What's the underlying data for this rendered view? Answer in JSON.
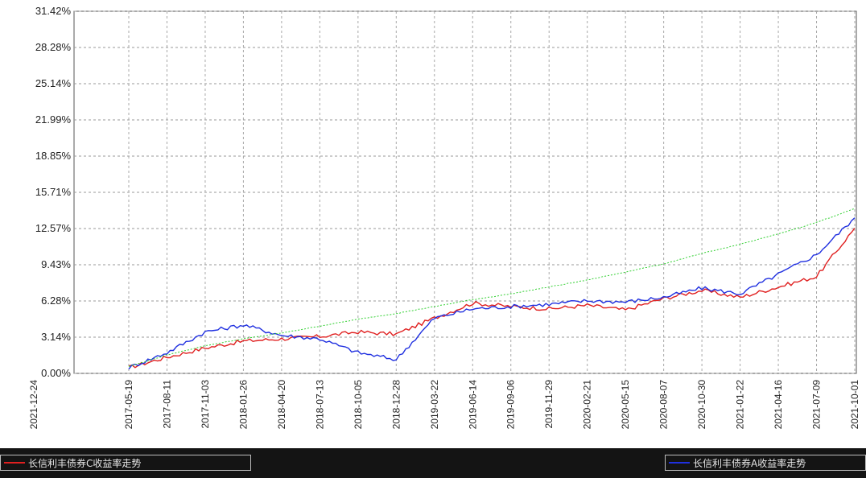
{
  "chart_data": {
    "type": "line",
    "title": "",
    "xlabel": "",
    "ylabel": "",
    "y_tick_labels": [
      "31.42%",
      "28.28%",
      "25.14%",
      "21.99%",
      "18.85%",
      "15.71%",
      "12.57%",
      "9.43%",
      "6.28%",
      "3.14%",
      "0.00%"
    ],
    "y_tick_values": [
      31.42,
      28.28,
      25.14,
      21.99,
      18.85,
      15.71,
      12.57,
      9.43,
      6.28,
      3.14,
      0.0
    ],
    "ylim": [
      0.0,
      31.42
    ],
    "x_tick_labels": [
      "2021-12-24",
      "2017-05-19",
      "2017-08-11",
      "2017-11-03",
      "2018-01-26",
      "2018-04-20",
      "2018-07-13",
      "2018-10-05",
      "2018-12-28",
      "2019-03-22",
      "2019-06-14",
      "2019-09-06",
      "2019-11-29",
      "2020-02-21",
      "2020-05-15",
      "2020-08-07",
      "2020-10-30",
      "2021-01-22",
      "2021-04-16",
      "2021-07-09",
      "2021-10-01"
    ],
    "x_dates": [
      "2017-05-19",
      "2017-08-11",
      "2017-11-03",
      "2018-01-26",
      "2018-04-20",
      "2018-07-13",
      "2018-10-05",
      "2018-12-28",
      "2019-03-22",
      "2019-06-14",
      "2019-09-06",
      "2019-11-29",
      "2020-02-21",
      "2020-05-15",
      "2020-08-07",
      "2020-10-30",
      "2021-01-22",
      "2021-04-16",
      "2021-07-09",
      "2021-10-01"
    ],
    "grid": true,
    "legend_position": "bottom",
    "series": [
      {
        "name": "长信利丰债券C收益率走势",
        "color": "#e02020",
        "values": [
          0.5,
          1.4,
          2.2,
          2.8,
          3.0,
          3.2,
          3.6,
          3.4,
          4.8,
          6.1,
          5.8,
          5.6,
          5.9,
          5.5,
          6.5,
          7.2,
          6.6,
          7.5,
          8.4,
          12.6
        ]
      },
      {
        "name": "长信利丰债券A收益率走势",
        "color": "#2030e0",
        "values": [
          0.5,
          1.8,
          3.6,
          4.2,
          3.3,
          3.0,
          1.8,
          1.2,
          4.8,
          5.6,
          5.8,
          6.0,
          6.3,
          6.2,
          6.6,
          7.4,
          6.9,
          8.6,
          10.3,
          13.5
        ]
      },
      {
        "name": "",
        "color": "#30d030",
        "values": [
          0.6,
          1.6,
          2.4,
          3.0,
          3.5,
          4.1,
          4.7,
          5.2,
          5.8,
          6.4,
          6.9,
          7.5,
          8.1,
          8.8,
          9.5,
          10.4,
          11.2,
          12.1,
          13.1,
          14.3
        ]
      }
    ]
  },
  "legend": {
    "items": [
      {
        "label": "长信利丰债券C收益率走势",
        "color": "#e02020"
      },
      {
        "label": "长信利丰债券A收益率走势",
        "color": "#2030e0"
      }
    ]
  }
}
